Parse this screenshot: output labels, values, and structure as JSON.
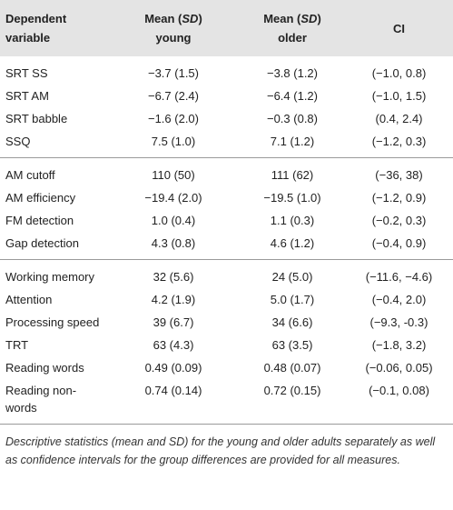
{
  "header": {
    "cols": [
      {
        "text": "Dependent variable"
      },
      {
        "before": "Mean (",
        "italic": "SD",
        "after": ")",
        "sub": "young"
      },
      {
        "before": "Mean (",
        "italic": "SD",
        "after": ")",
        "sub": "older"
      },
      {
        "text": "CI"
      }
    ]
  },
  "groups": [
    [
      [
        "SRT SS",
        "−3.7 (1.5)",
        "−3.8 (1.2)",
        "(−1.0, 0.8)"
      ],
      [
        "SRT AM",
        "−6.7 (2.4)",
        "−6.4 (1.2)",
        "(−1.0, 1.5)"
      ],
      [
        "SRT babble",
        "−1.6 (2.0)",
        "−0.3 (0.8)",
        "(0.4, 2.4)"
      ],
      [
        "SSQ",
        "7.5 (1.0)",
        "7.1 (1.2)",
        "(−1.2, 0.3)"
      ]
    ],
    [
      [
        "AM cutoff",
        "110 (50)",
        "111 (62)",
        "(−36, 38)"
      ],
      [
        "AM efficiency",
        "−19.4 (2.0)",
        "−19.5 (1.0)",
        "(−1.2, 0.9)"
      ],
      [
        "FM detection",
        "1.0 (0.4)",
        "1.1 (0.3)",
        "(−0.2, 0.3)"
      ],
      [
        "Gap detection",
        "4.3 (0.8)",
        "4.6 (1.2)",
        "(−0.4, 0.9)"
      ]
    ],
    [
      [
        "Working memory",
        "32 (5.6)",
        "24 (5.0)",
        "(−11.6, −4.6)"
      ],
      [
        "Attention",
        "4.2 (1.9)",
        "5.0 (1.7)",
        "(−0.4, 2.0)"
      ],
      [
        "Processing speed",
        "39 (6.7)",
        "34 (6.6)",
        "(−9.3, -0.3)"
      ],
      [
        "TRT",
        "63 (4.3)",
        "63 (3.5)",
        "(−1.8, 3.2)"
      ],
      [
        "Reading words",
        "0.49 (0.09)",
        "0.48 (0.07)",
        "(−0.06, 0.05)"
      ],
      [
        "Reading non-words",
        "0.74 (0.14)",
        "0.72 (0.15)",
        "(−0.1, 0.08)"
      ]
    ]
  ],
  "caption": "Descriptive statistics (mean and SD) for the young and older adults separately as well as confidence intervals for the group differences are provided for all measures."
}
